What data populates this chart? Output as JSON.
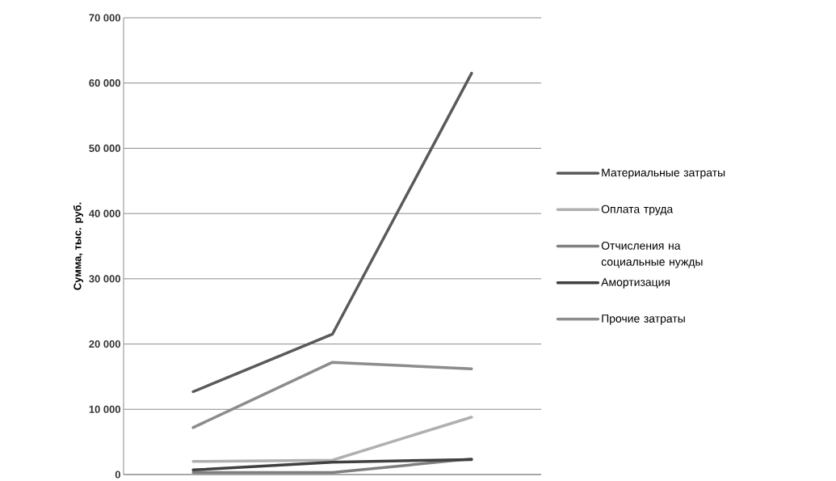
{
  "chart_data": {
    "type": "line",
    "ylabel": "Сумма, тыс. руб.",
    "categories": [
      null,
      null,
      null
    ],
    "series": [
      {
        "name": "Материальные затраты",
        "color": "#5a5a5a",
        "values": [
          12700,
          21500,
          61500
        ]
      },
      {
        "name": "Оплата труда",
        "color": "#b0b0b0",
        "values": [
          2000,
          2200,
          8800
        ]
      },
      {
        "name": "Отчисления на социальные нужды",
        "color": "#7f7f7f",
        "values": [
          300,
          300,
          2400
        ]
      },
      {
        "name": "Амортизация",
        "color": "#404040",
        "values": [
          700,
          1900,
          2300
        ]
      },
      {
        "name": "Прочие затраты",
        "color": "#8c8c8c",
        "values": [
          7200,
          17200,
          16200
        ]
      }
    ],
    "ylim": [
      0,
      70000
    ],
    "yticks": [
      {
        "value": 0,
        "label": "0"
      },
      {
        "value": 10000,
        "label": "10 000"
      },
      {
        "value": 20000,
        "label": "20 000"
      },
      {
        "value": 30000,
        "label": "30 000"
      },
      {
        "value": 40000,
        "label": "40 000"
      },
      {
        "value": 50000,
        "label": "50 000"
      },
      {
        "value": 60000,
        "label": "60 000"
      },
      {
        "value": 70000,
        "label": "70 000"
      }
    ],
    "grid": "y",
    "legend": "right",
    "marker": "none",
    "line_style": "solid"
  }
}
